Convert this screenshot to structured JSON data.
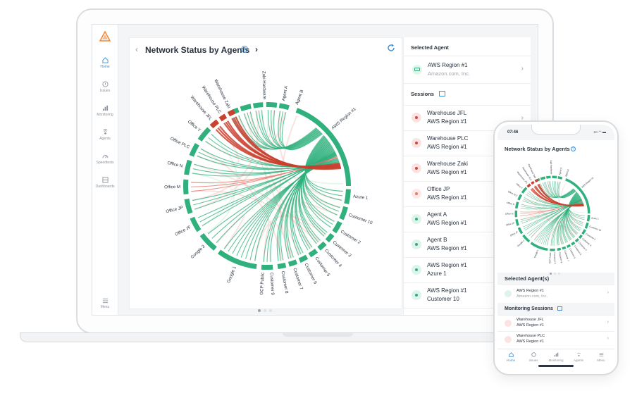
{
  "laptop": {
    "sidebar": {
      "items": [
        {
          "label": "Home",
          "icon": "home-icon",
          "active": true
        },
        {
          "label": "Issues",
          "icon": "issues-icon"
        },
        {
          "label": "Monitoring",
          "icon": "bar-chart-icon"
        },
        {
          "label": "Agents",
          "icon": "agents-icon"
        },
        {
          "label": "Speedtests",
          "icon": "gauge-icon"
        },
        {
          "label": "Dashboards",
          "icon": "dashboard-icon"
        }
      ],
      "menu_label": "Menu"
    },
    "main": {
      "title": "Network Status by Agents",
      "help": "?",
      "back": "‹",
      "next": "›"
    },
    "right_panel": {
      "selected_agent_heading": "Selected Agent",
      "selected_agent": {
        "name": "AWS Region #1",
        "org": "Amazon.com, Inc."
      },
      "sessions_heading": "Sessions",
      "sessions": [
        {
          "name": "Warehouse JFL",
          "agent": "AWS Region #1",
          "status": "bad"
        },
        {
          "name": "Warehouse PLC",
          "agent": "AWS Region #1",
          "status": "bad"
        },
        {
          "name": "Warehouse Zaki",
          "agent": "AWS Region #1",
          "status": "bad"
        },
        {
          "name": "Office JP",
          "agent": "AWS Region #1",
          "status": "warn"
        },
        {
          "name": "Agent A",
          "agent": "AWS Region #1",
          "status": "ok"
        },
        {
          "name": "Agent B",
          "agent": "AWS Region #1",
          "status": "ok"
        },
        {
          "name": "AWS Region #1",
          "agent": "Azure 1",
          "status": "ok"
        },
        {
          "name": "AWS Region #1",
          "agent": "Customer 10",
          "status": "ok"
        }
      ]
    }
  },
  "chord_labels": [
    "Zaki Hardware",
    "Agent A",
    "Agent B",
    "AWS Region #1",
    "Azure 1",
    "Customer 10",
    "Customer 2",
    "Customer 3",
    "Customer 4",
    "Customer 5",
    "Customer 6",
    "Customer 7",
    "Customer 8",
    "Customer 9",
    "GCP Public",
    "Google 1",
    "Google 2",
    "Office JF",
    "Office JP",
    "Office M",
    "Office N",
    "Office PLC",
    "Office Y",
    "Warehouse JFL",
    "Warehouse PLC",
    "Warehouse Zaki"
  ],
  "phone": {
    "time": "07:46",
    "signal": "▪▪▪ ◠ ▬",
    "title": "Network Status by Agents",
    "help": "?",
    "selected_heading": "Selected Agent(s)",
    "selected_agent": {
      "name": "AWS Region #1",
      "org": "Amazon.com, Inc."
    },
    "sessions_heading": "Monitoring Sessions",
    "sessions": [
      {
        "name": "Warehouse JFL",
        "agent": "AWS Region #1"
      },
      {
        "name": "Warehouse PLC",
        "agent": "AWS Region #1"
      }
    ],
    "tabs": [
      "Home",
      "Issues",
      "Monitoring",
      "Agents",
      "Menu"
    ]
  },
  "colors": {
    "ok": "#2fb07c",
    "bad": "#c9412f",
    "warn": "#e8776b",
    "accent": "#3a8fd8",
    "brand": "#f08a3c"
  }
}
